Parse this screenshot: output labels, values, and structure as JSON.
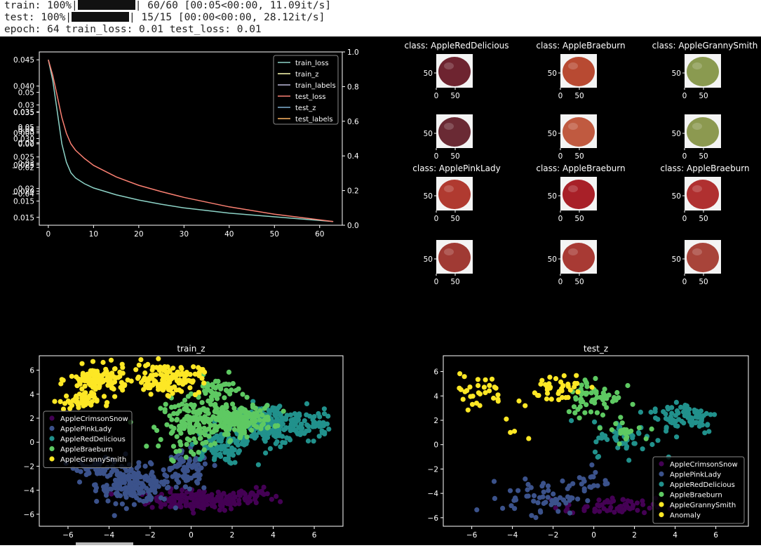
{
  "console": {
    "train": {
      "prefix": "train: 100%|",
      "suffix": "| 60/60 [00:05<00:00, 11.09it/s]"
    },
    "test": {
      "prefix": "test: 100%|",
      "suffix": "| 15/15 [00:00<00:00, 28.12it/s]"
    },
    "epoch": "epoch: 64 train_loss: 0.01 test_loss: 0.01"
  },
  "colors": {
    "train_loss": "#8dd3c7",
    "train_z": "#ffffb3",
    "train_labels": "#bebada",
    "test_loss": "#fb8072",
    "test_z": "#80b1d3",
    "test_labels": "#fdb462",
    "AppleCrimsonSnow": "#440154",
    "ApplePinkLady": "#3b528b",
    "AppleRedDelicious": "#21918c",
    "AppleBraeburn": "#5ec962",
    "AppleGrannySmith": "#fde725",
    "Anomaly": "#fde725"
  },
  "chart_data": [
    {
      "type": "line",
      "title": "",
      "x": [
        0,
        1,
        2,
        3,
        4,
        5,
        6,
        8,
        10,
        15,
        20,
        25,
        30,
        40,
        50,
        63
      ],
      "series": [
        {
          "name": "train_loss",
          "values": [
            0.045,
            0.041,
            0.035,
            0.029,
            0.0255,
            0.0235,
            0.0225,
            0.0214,
            0.0206,
            0.0193,
            0.0183,
            0.0175,
            0.0168,
            0.0158,
            0.0151,
            0.0142
          ]
        },
        {
          "name": "test_loss",
          "values": [
            0.045,
            0.042,
            0.038,
            0.034,
            0.031,
            0.029,
            0.0278,
            0.0262,
            0.0249,
            0.0227,
            0.0211,
            0.0199,
            0.0188,
            0.017,
            0.0156,
            0.0142
          ]
        }
      ],
      "legend": [
        "train_loss",
        "train_z",
        "train_labels",
        "test_loss",
        "test_z",
        "test_labels"
      ],
      "legend_position": "top-right",
      "xticks": [
        "0",
        "10",
        "20",
        "30",
        "40",
        "50",
        "60"
      ],
      "xlim": [
        -2,
        65
      ],
      "ylim": [
        0.0135,
        0.0465
      ],
      "yticks_primary": [
        "0.015",
        "0.020",
        "0.025",
        "0.030",
        "0.035",
        "0.040",
        "0.045"
      ],
      "yticks_right": [
        "0.0",
        "0.2",
        "0.4",
        "0.6",
        "0.8",
        "1.0"
      ],
      "ylim_right": [
        0,
        1
      ],
      "overlapping_ticks": [
        {
          "label": "0.05",
          "y": 0.0388
        },
        {
          "label": "0.03",
          "y": 0.0364
        },
        {
          "label": "0.02",
          "y": 0.0292
        },
        {
          "label": "0.05",
          "y": 0.0322
        },
        {
          "label": "0.04",
          "y": 0.0318
        },
        {
          "label": "0.03",
          "y": 0.0314
        },
        {
          "label": "0.035",
          "y": 0.0351
        },
        {
          "label": "0.000",
          "y": 0.0311
        },
        {
          "label": "0.00",
          "y": 0.029
        },
        {
          "label": "0.025",
          "y": 0.0265
        },
        {
          "label": "0.03",
          "y": 0.0253
        },
        {
          "label": "−0.02",
          "y": 0.0245
        },
        {
          "label": "0.02",
          "y": 0.0205
        },
        {
          "label": "−0.04",
          "y": 0.0195
        },
        {
          "label": "0.015",
          "y": 0.0181
        }
      ]
    },
    {
      "type": "scatter",
      "title": "train_z",
      "xlim": [
        -7.4,
        7.4
      ],
      "ylim": [
        -7,
        7.2
      ],
      "xticks": [
        -6,
        -4,
        -2,
        0,
        2,
        4,
        6
      ],
      "yticks": [
        -6,
        -4,
        -2,
        0,
        2,
        4,
        6
      ],
      "legend_position": "middle-left",
      "classes": [
        {
          "name": "AppleCrimsonSnow",
          "clusters": [
            {
              "cx": 0.5,
              "cy": -4.8,
              "sx": 1.8,
              "sy": 0.6,
              "n": 180
            },
            {
              "cx": 3.2,
              "cy": -4.4,
              "sx": 0.6,
              "sy": 0.4,
              "n": 25
            }
          ]
        },
        {
          "name": "ApplePinkLady",
          "clusters": [
            {
              "cx": -2.8,
              "cy": -3.5,
              "sx": 1.3,
              "sy": 1.1,
              "n": 180
            },
            {
              "cx": -0.2,
              "cy": -2.5,
              "sx": 0.8,
              "sy": 1.2,
              "n": 70
            },
            {
              "cx": -4.5,
              "cy": -2.1,
              "sx": 0.8,
              "sy": 0.5,
              "n": 40
            }
          ]
        },
        {
          "name": "AppleRedDelicious",
          "clusters": [
            {
              "cx": 3.8,
              "cy": 1.5,
              "sx": 1.3,
              "sy": 1.2,
              "n": 230
            },
            {
              "cx": 1.2,
              "cy": -0.4,
              "sx": 0.9,
              "sy": 1.0,
              "n": 80
            },
            {
              "cx": 5.9,
              "cy": 1.5,
              "sx": 0.6,
              "sy": 0.9,
              "n": 40
            }
          ]
        },
        {
          "name": "AppleBraeburn",
          "clusters": [
            {
              "cx": 2.3,
              "cy": 1.9,
              "sx": 1.2,
              "sy": 0.8,
              "n": 180
            },
            {
              "cx": 0.2,
              "cy": 1.5,
              "sx": 1.2,
              "sy": 1.5,
              "n": 160
            },
            {
              "cx": 1.2,
              "cy": 4.2,
              "sx": 0.8,
              "sy": 0.9,
              "n": 50
            }
          ]
        },
        {
          "name": "AppleGrannySmith",
          "clusters": [
            {
              "cx": -4.5,
              "cy": 5.2,
              "sx": 1.0,
              "sy": 0.8,
              "n": 120
            },
            {
              "cx": -1.2,
              "cy": 5.3,
              "sx": 1.2,
              "sy": 0.9,
              "n": 140
            },
            {
              "cx": -5.5,
              "cy": 3.4,
              "sx": 0.7,
              "sy": 0.5,
              "n": 50
            }
          ]
        }
      ]
    },
    {
      "type": "scatter",
      "title": "test_z",
      "xlim": [
        -7.4,
        7.6
      ],
      "ylim": [
        -6.7,
        7.3
      ],
      "xticks": [
        -6,
        -4,
        -2,
        0,
        2,
        4,
        6
      ],
      "yticks": [
        -6,
        -4,
        -2,
        0,
        2,
        4,
        6
      ],
      "legend_position": "bottom-right",
      "classes": [
        {
          "name": "AppleCrimsonSnow",
          "clusters": [
            {
              "cx": 0.8,
              "cy": -5.1,
              "sx": 1.6,
              "sy": 0.5,
              "n": 60
            }
          ]
        },
        {
          "name": "ApplePinkLady",
          "clusters": [
            {
              "cx": -2.5,
              "cy": -4.3,
              "sx": 1.4,
              "sy": 1.0,
              "n": 55
            },
            {
              "cx": -0.3,
              "cy": -3.0,
              "sx": 0.7,
              "sy": 0.9,
              "n": 20
            }
          ]
        },
        {
          "name": "AppleRedDelicious",
          "clusters": [
            {
              "cx": 4.5,
              "cy": 2.3,
              "sx": 1.2,
              "sy": 1.0,
              "n": 75
            },
            {
              "cx": 1.5,
              "cy": 0.5,
              "sx": 1.1,
              "sy": 1.0,
              "n": 50
            }
          ]
        },
        {
          "name": "AppleBraeburn",
          "clusters": [
            {
              "cx": 0.0,
              "cy": 4.0,
              "sx": 1.0,
              "sy": 1.2,
              "n": 60
            },
            {
              "cx": 1.6,
              "cy": 1.2,
              "sx": 0.8,
              "sy": 0.6,
              "n": 20
            }
          ]
        },
        {
          "name": "AppleGrannySmith",
          "clusters": [
            {
              "cx": -5.7,
              "cy": 4.3,
              "sx": 0.9,
              "sy": 1.0,
              "n": 30
            },
            {
              "cx": -2.0,
              "cy": 4.7,
              "sx": 1.3,
              "sy": 0.9,
              "n": 40
            }
          ]
        },
        {
          "name": "Anomaly",
          "points": [
            [
              -4.3,
              2.1
            ],
            [
              -4.1,
              1.0
            ],
            [
              -3.9,
              1.1
            ],
            [
              -3.2,
              0.5
            ]
          ]
        }
      ]
    }
  ],
  "images": {
    "rows": [
      [
        {
          "title": "class: AppleRedDelicious",
          "fill": "#6e2430"
        },
        {
          "title": "class: AppleBraeburn",
          "fill": "#b84a32"
        },
        {
          "title": "class: AppleGrannySmith",
          "fill": "#8a9a50"
        }
      ],
      [
        {
          "title": "",
          "fill": "#6a2a34"
        },
        {
          "title": "",
          "fill": "#c05a40"
        },
        {
          "title": "",
          "fill": "#8c9950"
        }
      ],
      [
        {
          "title": "class: ApplePinkLady",
          "fill": "#b03a30"
        },
        {
          "title": "class: AppleBraeburn",
          "fill": "#a82028"
        },
        {
          "title": "class: AppleBraeburn",
          "fill": "#b03030"
        }
      ],
      [
        {
          "title": "",
          "fill": "#a03a34"
        },
        {
          "title": "",
          "fill": "#a83a34"
        },
        {
          "title": "",
          "fill": "#a8443a"
        }
      ]
    ],
    "yticks": [
      "50"
    ],
    "xticks": [
      "0",
      "50"
    ]
  }
}
